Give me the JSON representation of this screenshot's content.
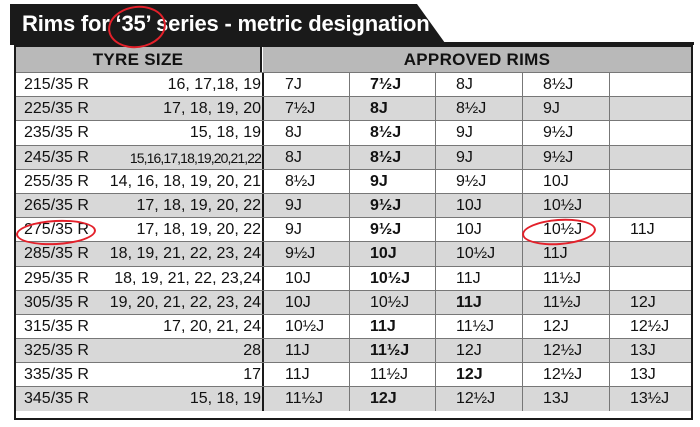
{
  "title": "Rims for ‘35’ series - metric designation",
  "headers": {
    "tyre_size": "TYRE SIZE",
    "approved_rims": "APPROVED RIMS"
  },
  "rows": [
    {
      "size": "215/35 R",
      "diameters": "16, 17,18, 19",
      "rims": [
        "7J",
        "7½J",
        "8J",
        "8½J",
        ""
      ],
      "bold_index": 1
    },
    {
      "size": "225/35 R",
      "diameters": "17, 18, 19, 20",
      "rims": [
        "7½J",
        "8J",
        "8½J",
        "9J",
        ""
      ],
      "bold_index": 1
    },
    {
      "size": "235/35 R",
      "diameters": "15, 18, 19",
      "rims": [
        "8J",
        "8½J",
        "9J",
        "9½J",
        ""
      ],
      "bold_index": 1
    },
    {
      "size": "245/35 R",
      "diameters": "15,16,17,18,19,20,21,22",
      "rims": [
        "8J",
        "8½J",
        "9J",
        "9½J",
        ""
      ],
      "bold_index": 1,
      "compact": true
    },
    {
      "size": "255/35 R",
      "diameters": "14, 16, 18, 19, 20, 21",
      "rims": [
        "8½J",
        "9J",
        "9½J",
        "10J",
        ""
      ],
      "bold_index": 1
    },
    {
      "size": "265/35 R",
      "diameters": "17, 18, 19, 20, 22",
      "rims": [
        "9J",
        "9½J",
        "10J",
        "10½J",
        ""
      ],
      "bold_index": 1
    },
    {
      "size": "275/35 R",
      "diameters": "17, 18, 19, 20, 22",
      "rims": [
        "9J",
        "9½J",
        "10J",
        "10½J",
        "11J"
      ],
      "bold_index": 1
    },
    {
      "size": "285/35 R",
      "diameters": "18, 19, 21, 22, 23, 24",
      "rims": [
        "9½J",
        "10J",
        "10½J",
        "11J",
        ""
      ],
      "bold_index": 1
    },
    {
      "size": "295/35 R",
      "diameters": "18, 19, 21, 22, 23,24",
      "rims": [
        "10J",
        "10½J",
        "11J",
        "11½J",
        ""
      ],
      "bold_index": 1
    },
    {
      "size": "305/35 R",
      "diameters": "19, 20, 21, 22, 23, 24",
      "rims": [
        "10J",
        "10½J",
        "11J",
        "11½J",
        "12J"
      ],
      "bold_index": 2
    },
    {
      "size": "315/35 R",
      "diameters": "17, 20, 21, 24",
      "rims": [
        "10½J",
        "11J",
        "11½J",
        "12J",
        "12½J"
      ],
      "bold_index": 1
    },
    {
      "size": "325/35 R",
      "diameters": "28",
      "rims": [
        "11J",
        "11½J",
        "12J",
        "12½J",
        "13J"
      ],
      "bold_index": 1
    },
    {
      "size": "335/35 R",
      "diameters": "17",
      "rims": [
        "11J",
        "11½J",
        "12J",
        "12½J",
        "13J"
      ],
      "bold_index": 2
    },
    {
      "size": "345/35 R",
      "diameters": "15, 18, 19",
      "rims": [
        "11½J",
        "12J",
        "12½J",
        "13J",
        "13½J"
      ],
      "bold_index": 1
    }
  ]
}
